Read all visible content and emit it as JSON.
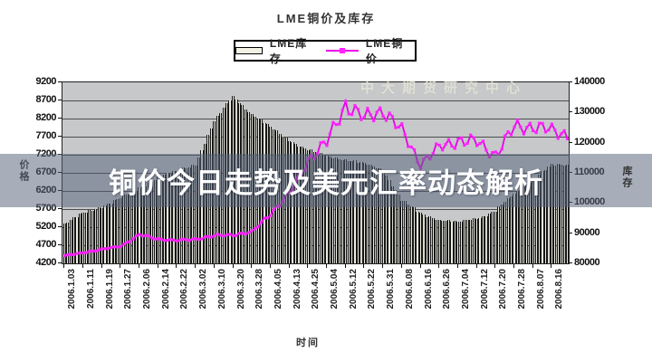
{
  "banner": {
    "text": "铜价今日走势及美元汇率动态解析",
    "bg_color": "#56637b",
    "text_color": "#ffffff"
  },
  "watermark": {
    "text": "中大期货研究中心"
  },
  "chart": {
    "title": "LME铜价及库存",
    "x_title": "时间",
    "y_left_title": "价格",
    "y_right_title": "库存",
    "legend": [
      {
        "label": "LME库存",
        "swatch": "bar-swatch"
      },
      {
        "label": "LME铜价",
        "swatch": "line-swatch"
      }
    ],
    "y_left_ticks": [
      "9200",
      "8700",
      "8200",
      "7700",
      "7200",
      "6700",
      "6200",
      "5700",
      "5200",
      "4700",
      "4200"
    ],
    "y_right_ticks": [
      "140000",
      "130000",
      "120000",
      "110000",
      "100000",
      "90000",
      "80000"
    ]
  },
  "colors": {
    "plot_bg": "#c6c8ca",
    "gridline": "#4d4d4d",
    "bar_fill": "#eeede2",
    "bar_border": "#161616",
    "price_line": "#e800e8",
    "price_marker": "#ff22ff"
  },
  "chart_data": {
    "type": "bar",
    "title": "LME铜价及库存",
    "xlabel": "时间",
    "ylabel_left": "价格",
    "ylabel_right": "库存",
    "legend_position": "top",
    "grid": true,
    "y_left_range": {
      "min": 4200,
      "max": 9200,
      "step": 500
    },
    "y_right_range": {
      "min": 80000,
      "max": 140000,
      "step": 10000
    },
    "categories": [
      "2006.1.03",
      "2006.1.11",
      "2006.1.19",
      "2006.1.27",
      "2006.2.06",
      "2006.2.14",
      "2006.2.22",
      "2006.3.02",
      "2006.3.10",
      "2006.3.20",
      "2006.3.28",
      "2006.4.05",
      "2006.4.13",
      "2006.4.25",
      "2006.5.04",
      "2006.5.12",
      "2006.5.22",
      "2006.5.31",
      "2006.6.08",
      "2006.6.16",
      "2006.6.26",
      "2006.7.04",
      "2006.7.12",
      "2006.7.20",
      "2006.7.28",
      "2006.8.07",
      "2006.8.16"
    ],
    "series": [
      {
        "name": "LME库存",
        "type": "bar",
        "axis": "right",
        "color": "#eeede2",
        "values": [
          93000,
          96500,
          99000,
          101500,
          105000,
          108500,
          110500,
          113000,
          127000,
          135500,
          129500,
          125000,
          121000,
          117500,
          115500,
          114500,
          113000,
          111000,
          101000,
          96500,
          94500,
          93500,
          95000,
          97500,
          103000,
          108000,
          112500
        ]
      },
      {
        "name": "LME铜价",
        "type": "line",
        "axis": "left",
        "color": "#e800e8",
        "values": [
          4400,
          4500,
          4580,
          4680,
          4980,
          4880,
          4820,
          4880,
          4950,
          5000,
          5050,
          5600,
          6100,
          7100,
          7500,
          8650,
          8150,
          8500,
          7800,
          7000,
          7350,
          7650,
          7500,
          7250,
          7900,
          8050,
          7800
        ]
      }
    ]
  }
}
